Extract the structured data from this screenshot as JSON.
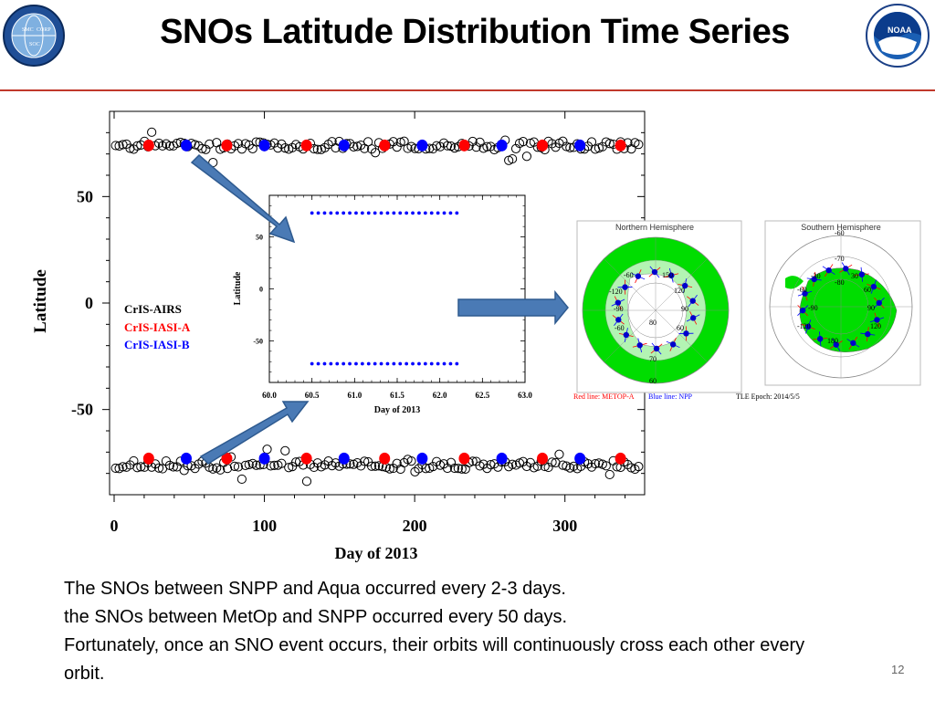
{
  "slide": {
    "title": "SNOs Latitude Distribution Time Series",
    "page_number": "12",
    "body_lines": [
      "The SNOs between SNPP and Aqua occurred every 2-3 days.",
      "the SNOs between MetOp and SNPP occurred every 50 days.",
      "Fortunately, once an SNO event occurs, their orbits will continuously cross each other every orbit."
    ],
    "logos": {
      "left_text": "NOAA NESDIS STAR",
      "left_sub": [
        "SMC",
        "CORP",
        "SOC"
      ],
      "right_text": "NOAA"
    },
    "colors": {
      "accent_rule": "#c0392b",
      "cris_airs": "#000000",
      "cris_iasi_a": "#ff0000",
      "cris_iasi_b": "#0000ff",
      "arrow": "#4a7ab5",
      "land": "#00dd00"
    }
  },
  "chart_data": [
    {
      "type": "scatter",
      "xlabel": "Day of 2013",
      "ylabel": "Latitude",
      "xlim": [
        0,
        350
      ],
      "ylim": [
        -90,
        90
      ],
      "xticks": [
        0,
        100,
        200,
        300
      ],
      "yticks": [
        -50,
        0,
        50
      ],
      "grid": false,
      "legend_position": "center-left",
      "series": [
        {
          "name": "CrIS-AIRS",
          "color": "#000000",
          "marker": "open-circle",
          "north_band_latitude": 74,
          "south_band_latitude": -76
        },
        {
          "name": "CrIS-IASI-A",
          "color": "#ff0000",
          "marker": "filled-circle",
          "x": [
            23,
            75,
            128,
            180,
            233,
            285,
            337,
            23,
            75,
            128,
            180,
            233,
            285,
            337
          ],
          "y": [
            74,
            74,
            74,
            74,
            74,
            74,
            74,
            -73,
            -73,
            -73,
            -73,
            -73,
            -73,
            -73
          ]
        },
        {
          "name": "CrIS-IASI-B",
          "color": "#0000ff",
          "marker": "filled-circle",
          "x": [
            48,
            100,
            153,
            205,
            258,
            310,
            48,
            100,
            153,
            205,
            258,
            310
          ],
          "y": [
            74,
            74,
            74,
            74,
            74,
            74,
            -73,
            -73,
            -73,
            -73,
            -73,
            -73
          ]
        }
      ]
    },
    {
      "type": "scatter",
      "xlabel": "Day of 2013",
      "ylabel": "Latitude",
      "xlim": [
        60.0,
        63.0
      ],
      "ylim": [
        -90,
        90
      ],
      "xticks": [
        60.0,
        60.5,
        61.0,
        61.5,
        62.0,
        62.5,
        63.0
      ],
      "xticklabels": [
        "60.0",
        "60.5",
        "61.0",
        "61.5",
        "62.0",
        "62.5",
        "63.0"
      ],
      "yticks": [
        -50,
        0,
        50
      ],
      "color": "#0000ff",
      "north": {
        "x_start": 60.5,
        "x_end": 62.2,
        "count": 24,
        "y": 73
      },
      "south": {
        "x_start": 60.5,
        "x_end": 62.2,
        "count": 24,
        "y": -72
      }
    }
  ],
  "inset_maps": {
    "north": {
      "title": "Northern Hemisphere",
      "ring_labels": [
        "-60",
        "150",
        "-120",
        "120",
        "-90",
        "90",
        "-60",
        "60",
        "80",
        "70",
        "60"
      ]
    },
    "south": {
      "title": "Southern Hemisphere",
      "ring_labels": [
        "-60",
        "-70",
        "-30",
        "30",
        "-80",
        "60",
        "-60",
        "-90",
        "90",
        "-120",
        "120",
        "180"
      ]
    },
    "footnotes": {
      "red": "Red line: METOP-A",
      "blue": "Blue line: NPP",
      "epoch": "TLE Epoch: 2014/5/5"
    }
  }
}
